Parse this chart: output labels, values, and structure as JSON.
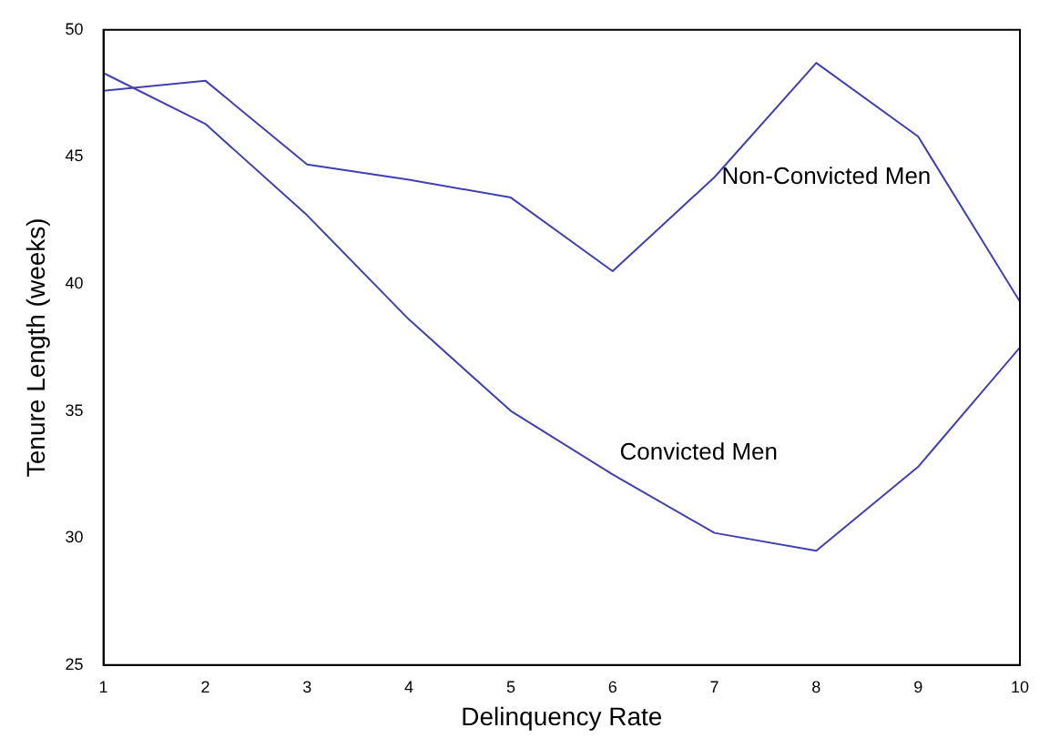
{
  "chart_data": {
    "type": "line",
    "xlabel": "Delinquency Rate",
    "ylabel": "Tenure Length (weeks)",
    "x": [
      1,
      2,
      3,
      4,
      5,
      6,
      7,
      8,
      9,
      10
    ],
    "series": [
      {
        "name": "Non-Convicted Men",
        "color": "#4040b0",
        "values": [
          47.6,
          48.0,
          44.7,
          44.1,
          43.4,
          40.5,
          44.2,
          48.7,
          45.8,
          39.3
        ]
      },
      {
        "name": "Convicted Men",
        "color": "#4040b0",
        "values": [
          48.3,
          46.3,
          42.7,
          38.6,
          35.0,
          32.5,
          30.2,
          29.5,
          32.8,
          37.5
        ]
      }
    ],
    "xlim": [
      1,
      10
    ],
    "xticks": [
      1,
      2,
      3,
      4,
      5,
      6,
      7,
      8,
      9,
      10
    ],
    "ylim": [
      25,
      50
    ],
    "yticks": [
      25,
      30,
      35,
      40,
      45,
      50
    ],
    "grid": false,
    "legend": false,
    "marker": "none",
    "line_style": "solid"
  }
}
